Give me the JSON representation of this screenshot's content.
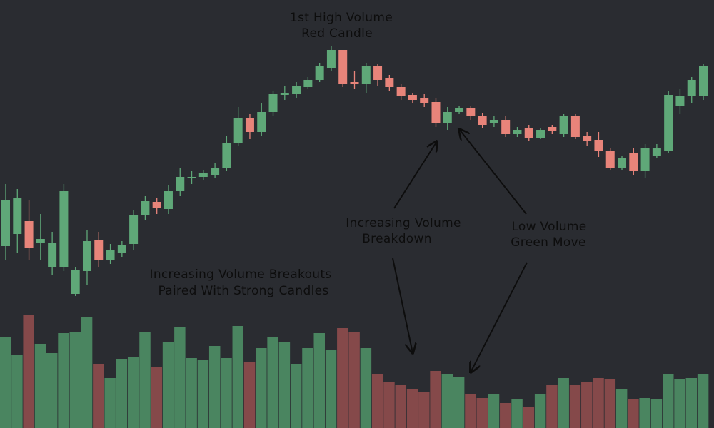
{
  "chart_data": {
    "type": "candlestick",
    "up_color": "#5fa878",
    "down_color": "#e8847a",
    "volume_up_color": "#4a8560",
    "volume_down_color": "#85494a",
    "ylim": [
      0,
      600
    ],
    "volume_ylim": [
      0,
      600
    ],
    "open": [
      255,
      272,
      290,
      260,
      225,
      225,
      188,
      220,
      263,
      235,
      245,
      258,
      298,
      317,
      307,
      332,
      350,
      352,
      355,
      365,
      400,
      435,
      415,
      443,
      467,
      468,
      478,
      488,
      505,
      530,
      485,
      482,
      507,
      490,
      478,
      467,
      462,
      457,
      428,
      443,
      448,
      438,
      428,
      432,
      412,
      420,
      407,
      422,
      412,
      437,
      410,
      404,
      388,
      365,
      385,
      360,
      382,
      388,
      452,
      465,
      465
    ],
    "high": [
      342,
      335,
      320,
      300,
      275,
      342,
      225,
      278,
      275,
      258,
      262,
      305,
      325,
      322,
      340,
      365,
      360,
      362,
      372,
      410,
      450,
      440,
      455,
      472,
      480,
      485,
      492,
      512,
      535,
      530,
      500,
      512,
      510,
      495,
      482,
      470,
      468,
      462,
      450,
      452,
      452,
      442,
      438,
      438,
      422,
      425,
      420,
      425,
      440,
      440,
      415,
      415,
      392,
      382,
      392,
      398,
      398,
      472,
      475,
      492,
      510
    ],
    "low": [
      235,
      245,
      235,
      235,
      215,
      220,
      185,
      200,
      225,
      230,
      240,
      250,
      292,
      300,
      300,
      325,
      342,
      348,
      350,
      360,
      395,
      405,
      410,
      438,
      460,
      462,
      475,
      485,
      500,
      478,
      475,
      470,
      480,
      472,
      460,
      455,
      450,
      422,
      418,
      440,
      432,
      420,
      422,
      408,
      408,
      402,
      405,
      412,
      408,
      405,
      395,
      380,
      362,
      362,
      355,
      350,
      378,
      385,
      440,
      455,
      460
    ],
    "close": [
      320,
      322,
      252,
      265,
      260,
      332,
      222,
      262,
      235,
      250,
      257,
      298,
      318,
      308,
      332,
      352,
      352,
      358,
      365,
      400,
      435,
      415,
      443,
      468,
      470,
      480,
      488,
      507,
      530,
      482,
      482,
      507,
      488,
      478,
      465,
      460,
      455,
      428,
      443,
      448,
      437,
      425,
      432,
      412,
      418,
      407,
      418,
      417,
      437,
      408,
      402,
      388,
      365,
      378,
      360,
      393,
      393,
      467,
      465,
      488,
      507
    ],
    "volume": [
      128,
      103,
      158,
      118,
      105,
      133,
      135,
      155,
      90,
      70,
      97,
      100,
      135,
      85,
      120,
      142,
      98,
      95,
      115,
      98,
      143,
      92,
      112,
      128,
      120,
      90,
      112,
      133,
      110,
      140,
      135,
      112,
      75,
      65,
      60,
      55,
      50,
      80,
      75,
      72,
      48,
      42,
      48,
      35,
      40,
      30,
      48,
      60,
      70,
      60,
      65,
      70,
      68,
      55,
      40,
      42,
      40,
      75,
      68,
      70,
      75
    ],
    "annotations": [
      {
        "lines": [
          "1st High Volume",
          "Red Candle"
        ]
      },
      {
        "lines": [
          "Increasing Volume Breakouts",
          "Paired With Strong Candles"
        ]
      },
      {
        "lines": [
          "Increasing Volume",
          "Breakdown"
        ]
      },
      {
        "lines": [
          "Low Volume",
          "Green Move"
        ]
      }
    ]
  }
}
